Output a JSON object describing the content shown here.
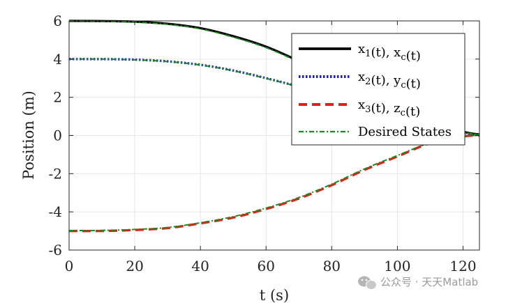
{
  "chart_data": {
    "type": "line",
    "title": "",
    "xlabel": "t (s)",
    "ylabel": "Position (m)",
    "xlim": [
      0,
      125
    ],
    "ylim": [
      -6,
      6
    ],
    "xticks": [
      0,
      20,
      40,
      60,
      80,
      100,
      120
    ],
    "yticks": [
      -6,
      -4,
      -2,
      0,
      2,
      4,
      6
    ],
    "grid": true,
    "legend_position": "top-right",
    "series": [
      {
        "name": "x_1(t), x_c(t)",
        "legend": {
          "base1": "x",
          "sub1": "1",
          "mid": "(t), x",
          "sub2": "c",
          "tail": "(t)"
        },
        "color": "#000000",
        "style": "solid",
        "points": [
          [
            0,
            6.0
          ],
          [
            10,
            5.99
          ],
          [
            20,
            5.96
          ],
          [
            30,
            5.85
          ],
          [
            40,
            5.62
          ],
          [
            50,
            5.2
          ],
          [
            60,
            4.65
          ],
          [
            70,
            3.9
          ],
          [
            80,
            3.1
          ],
          [
            90,
            2.3
          ],
          [
            100,
            1.5
          ],
          [
            110,
            0.75
          ],
          [
            120,
            0.2
          ],
          [
            125,
            0.05
          ]
        ]
      },
      {
        "name": "x_2(t), y_c(t)",
        "legend": {
          "base1": "x",
          "sub1": "2",
          "mid": "(t), y",
          "sub2": "c",
          "tail": "(t)"
        },
        "color": "#1a1adc",
        "style": "dotted",
        "points": [
          [
            0,
            4.0
          ],
          [
            10,
            4.0
          ],
          [
            20,
            3.97
          ],
          [
            30,
            3.88
          ],
          [
            40,
            3.7
          ],
          [
            50,
            3.4
          ],
          [
            60,
            3.0
          ],
          [
            70,
            2.55
          ],
          [
            80,
            2.0
          ],
          [
            90,
            1.5
          ],
          [
            100,
            1.0
          ],
          [
            110,
            0.5
          ],
          [
            120,
            0.15
          ],
          [
            125,
            0.05
          ]
        ]
      },
      {
        "name": "x_3(t), z_c(t)",
        "legend": {
          "base1": "x",
          "sub1": "3",
          "mid": "(t), z",
          "sub2": "c",
          "tail": "(t)"
        },
        "color": "#e0201b",
        "style": "dashed",
        "points": [
          [
            0,
            -5.0
          ],
          [
            10,
            -5.0
          ],
          [
            20,
            -4.95
          ],
          [
            30,
            -4.85
          ],
          [
            40,
            -4.6
          ],
          [
            50,
            -4.3
          ],
          [
            60,
            -3.85
          ],
          [
            70,
            -3.3
          ],
          [
            80,
            -2.6
          ],
          [
            90,
            -1.8
          ],
          [
            100,
            -1.1
          ],
          [
            110,
            -0.4
          ],
          [
            120,
            -0.05
          ],
          [
            125,
            0.0
          ]
        ]
      },
      {
        "name": "Desired States",
        "legend": {
          "base1": "Desired States",
          "sub1": "",
          "mid": "",
          "sub2": "",
          "tail": ""
        },
        "color": "#1a8a1a",
        "style": "dashdot",
        "points": [
          [
            0,
            6.0
          ],
          [
            10,
            5.98
          ],
          [
            20,
            5.93
          ],
          [
            30,
            5.82
          ],
          [
            40,
            5.58
          ],
          [
            50,
            5.15
          ],
          [
            60,
            4.6
          ],
          [
            70,
            3.85
          ],
          [
            80,
            3.05
          ],
          [
            90,
            2.25
          ],
          [
            100,
            1.45
          ],
          [
            110,
            0.72
          ],
          [
            120,
            0.18
          ],
          [
            125,
            0.04
          ]
        ],
        "extra_lines": [
          [
            [
              0,
              4.0
            ],
            [
              10,
              4.0
            ],
            [
              20,
              3.96
            ],
            [
              30,
              3.87
            ],
            [
              40,
              3.69
            ],
            [
              50,
              3.39
            ],
            [
              60,
              2.99
            ],
            [
              70,
              2.54
            ],
            [
              80,
              2.0
            ],
            [
              90,
              1.5
            ],
            [
              100,
              1.0
            ],
            [
              110,
              0.5
            ],
            [
              120,
              0.15
            ],
            [
              125,
              0.05
            ]
          ],
          [
            [
              0,
              -4.98
            ],
            [
              10,
              -4.97
            ],
            [
              20,
              -4.92
            ],
            [
              30,
              -4.82
            ],
            [
              40,
              -4.57
            ],
            [
              50,
              -4.25
            ],
            [
              60,
              -3.8
            ],
            [
              70,
              -3.25
            ],
            [
              80,
              -2.55
            ],
            [
              90,
              -1.75
            ],
            [
              100,
              -1.05
            ],
            [
              110,
              -0.38
            ],
            [
              120,
              -0.04
            ],
            [
              125,
              0.0
            ]
          ]
        ]
      }
    ]
  },
  "watermark": {
    "text": "公众号 · 天天Matlab",
    "icon": "wechat-icon"
  }
}
